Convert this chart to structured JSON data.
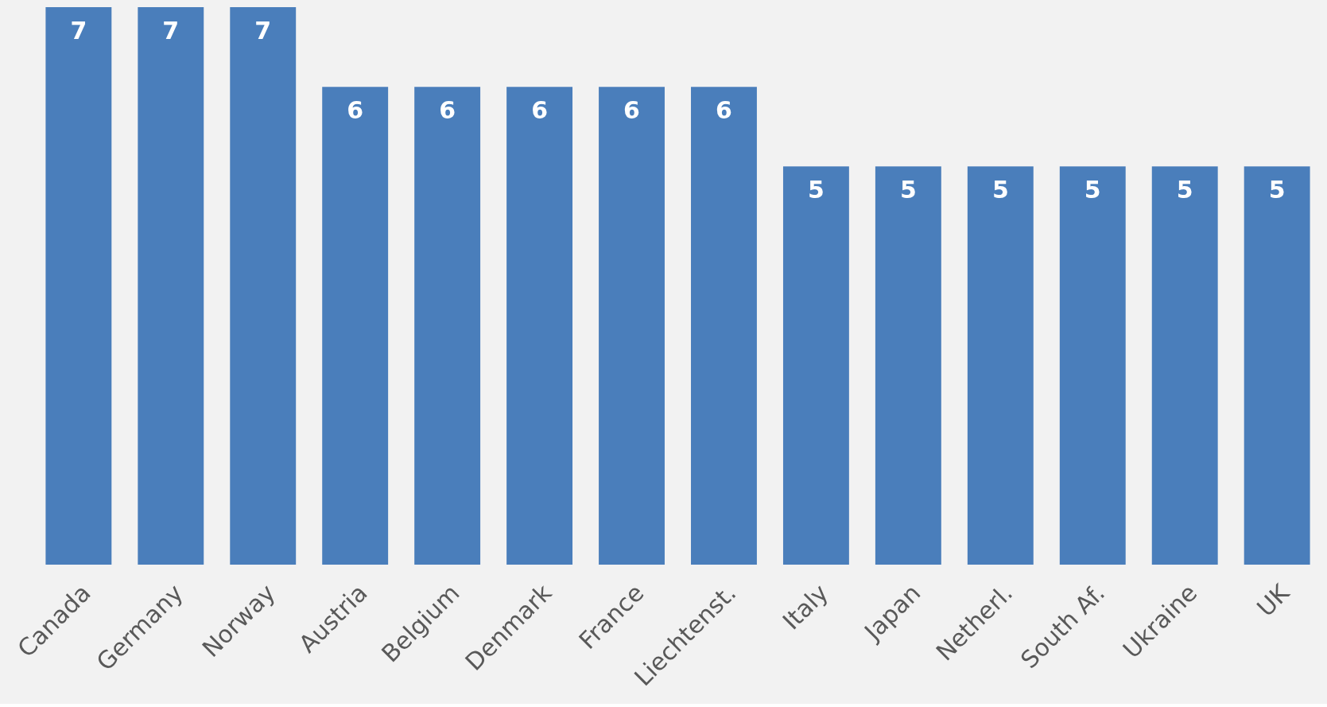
{
  "chart_data": {
    "type": "bar",
    "categories": [
      "Canada",
      "Germany",
      "Norway",
      "Austria",
      "Belgium",
      "Denmark",
      "France",
      "Liechtenst.",
      "Italy",
      "Japan",
      "Netherl.",
      "South Af.",
      "Ukraine",
      "UK"
    ],
    "values": [
      7,
      7,
      7,
      6,
      6,
      6,
      6,
      6,
      5,
      5,
      5,
      5,
      5,
      5
    ],
    "color": "#4a7ebb",
    "ylim": [
      0,
      7
    ],
    "data_labels": true
  }
}
